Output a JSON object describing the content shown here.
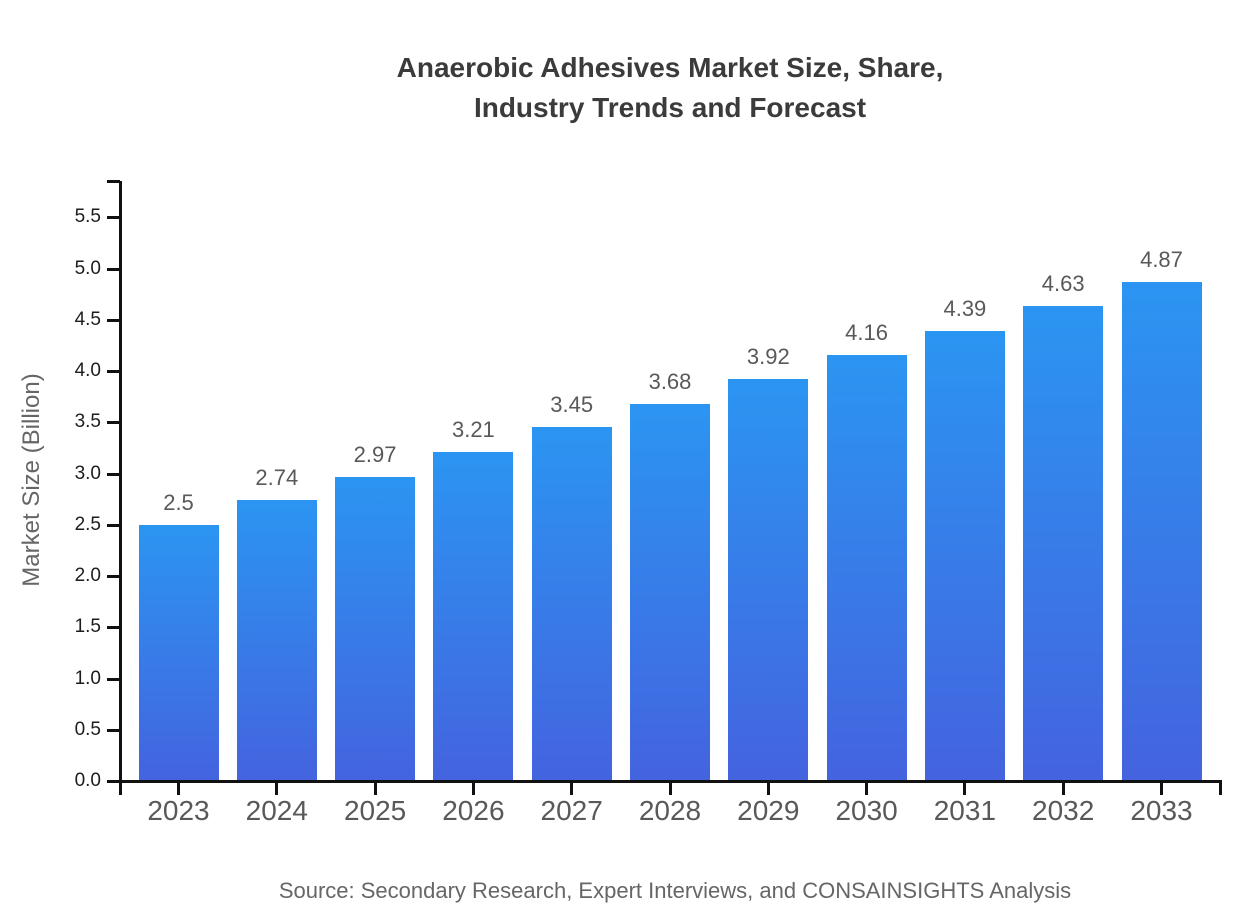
{
  "title": {
    "full": "Anaerobic Adhesives Market Size, Share, Industry Trends and Forecast",
    "lines": [
      "Anaerobic Adhesives Market Size, Share,",
      "Industry Trends and Forecast"
    ]
  },
  "chart_data": {
    "type": "bar",
    "title": "Anaerobic Adhesives Market Size, Share, Industry Trends and Forecast",
    "categories": [
      "2023",
      "2024",
      "2025",
      "2026",
      "2027",
      "2028",
      "2029",
      "2030",
      "2031",
      "2032",
      "2033"
    ],
    "values": [
      2.5,
      2.74,
      2.97,
      3.21,
      3.45,
      3.68,
      3.92,
      4.16,
      4.39,
      4.63,
      4.87
    ],
    "value_labels": [
      "2.5",
      "2.74",
      "2.97",
      "3.21",
      "3.45",
      "3.68",
      "3.92",
      "4.16",
      "4.39",
      "4.63",
      "4.87"
    ],
    "xlabel": "",
    "ylabel": "Market Size (Billion)",
    "ylim": [
      0,
      5.85
    ],
    "yticks": [
      0,
      0.5,
      1,
      1.5,
      2,
      2.5,
      3,
      3.5,
      4,
      4.5,
      5,
      5.5
    ],
    "ytick_labels": [
      "0.0",
      "0.5",
      "1.0",
      "1.5",
      "2.0",
      "2.5",
      "3.0",
      "3.5",
      "4.0",
      "4.5",
      "5.0",
      "5.5"
    ],
    "grid": false,
    "legend": "none",
    "bar_color_top": "#2B95F2",
    "bar_color_bottom": "#4463DF",
    "axis_color": "#111111",
    "value_label_color": "#595959",
    "xtick_label_color": "#595959",
    "ytick_label_color": "#1d1d1d",
    "title_color": "#3b3b3b"
  },
  "footer": {
    "source": "Source: Secondary Research, Expert Interviews, and CONSAINSIGHTS Analysis"
  }
}
